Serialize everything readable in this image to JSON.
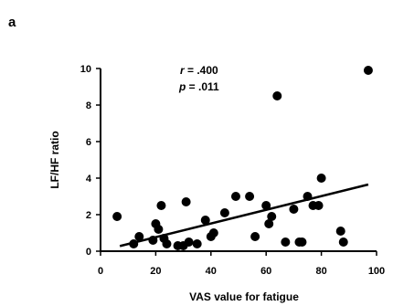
{
  "panel_label": "a",
  "colors": {
    "points": "#000000",
    "axes": "#000000",
    "fit_line": "#000000"
  },
  "stats": {
    "r_symbol": "r",
    "r_text": " = .400",
    "p_symbol": "p",
    "p_text": " = .011"
  },
  "chart_data": {
    "type": "scatter",
    "xlabel": "VAS value for fatigue",
    "ylabel": "LF/HF ratio",
    "xlim": [
      0,
      100
    ],
    "ylim": [
      0,
      10
    ],
    "xticks": [
      0,
      20,
      40,
      60,
      80,
      100
    ],
    "yticks": [
      0,
      2,
      4,
      6,
      8,
      10
    ],
    "grid": false,
    "legend": "none",
    "trendline": {
      "x": [
        7,
        97
      ],
      "y": [
        0.28,
        3.65
      ]
    },
    "points": [
      {
        "x": 6,
        "y": 1.9
      },
      {
        "x": 12,
        "y": 0.4
      },
      {
        "x": 14,
        "y": 0.8
      },
      {
        "x": 19,
        "y": 0.6
      },
      {
        "x": 20,
        "y": 1.5
      },
      {
        "x": 21,
        "y": 1.2
      },
      {
        "x": 22,
        "y": 2.5
      },
      {
        "x": 23,
        "y": 0.7
      },
      {
        "x": 24,
        "y": 0.4
      },
      {
        "x": 28,
        "y": 0.3
      },
      {
        "x": 30,
        "y": 0.3
      },
      {
        "x": 31,
        "y": 2.7
      },
      {
        "x": 32,
        "y": 0.5
      },
      {
        "x": 35,
        "y": 0.4
      },
      {
        "x": 38,
        "y": 1.7
      },
      {
        "x": 40,
        "y": 0.8
      },
      {
        "x": 41,
        "y": 1.0
      },
      {
        "x": 45,
        "y": 2.1
      },
      {
        "x": 49,
        "y": 3.0
      },
      {
        "x": 54,
        "y": 3.0
      },
      {
        "x": 56,
        "y": 0.8
      },
      {
        "x": 60,
        "y": 2.5
      },
      {
        "x": 61,
        "y": 1.5
      },
      {
        "x": 62,
        "y": 1.9
      },
      {
        "x": 64,
        "y": 8.5
      },
      {
        "x": 67,
        "y": 0.5
      },
      {
        "x": 70,
        "y": 2.3
      },
      {
        "x": 72,
        "y": 0.5
      },
      {
        "x": 73,
        "y": 0.5
      },
      {
        "x": 75,
        "y": 3.0
      },
      {
        "x": 77,
        "y": 2.5
      },
      {
        "x": 79,
        "y": 2.5
      },
      {
        "x": 80,
        "y": 4.0
      },
      {
        "x": 87,
        "y": 1.1
      },
      {
        "x": 88,
        "y": 0.5
      },
      {
        "x": 97,
        "y": 9.9
      }
    ]
  }
}
